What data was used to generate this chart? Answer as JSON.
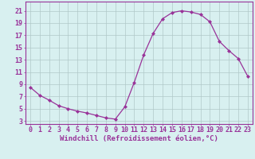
{
  "x": [
    0,
    1,
    2,
    3,
    4,
    5,
    6,
    7,
    8,
    9,
    10,
    11,
    12,
    13,
    14,
    15,
    16,
    17,
    18,
    19,
    20,
    21,
    22,
    23
  ],
  "y": [
    8.5,
    7.2,
    6.4,
    5.5,
    5.0,
    4.6,
    4.3,
    3.9,
    3.5,
    3.3,
    5.3,
    9.3,
    13.8,
    17.3,
    19.7,
    20.7,
    21.0,
    20.8,
    20.4,
    19.2,
    16.0,
    14.5,
    13.2,
    10.3
  ],
  "line_color": "#993399",
  "marker": "D",
  "marker_size": 2,
  "bg_color": "#d8f0f0",
  "grid_color": "#b0c8c8",
  "xlabel": "Windchill (Refroidissement éolien,°C)",
  "xlabel_fontsize": 6.5,
  "xtick_labels": [
    "0",
    "1",
    "2",
    "3",
    "4",
    "5",
    "6",
    "7",
    "8",
    "9",
    "10",
    "11",
    "12",
    "13",
    "14",
    "15",
    "16",
    "17",
    "18",
    "19",
    "20",
    "21",
    "22",
    "23"
  ],
  "ytick_vals": [
    3,
    5,
    7,
    9,
    11,
    13,
    15,
    17,
    19,
    21
  ],
  "ylim": [
    2.5,
    22.5
  ],
  "xlim": [
    -0.5,
    23.5
  ],
  "tick_fontsize": 6,
  "spine_color": "#993399"
}
